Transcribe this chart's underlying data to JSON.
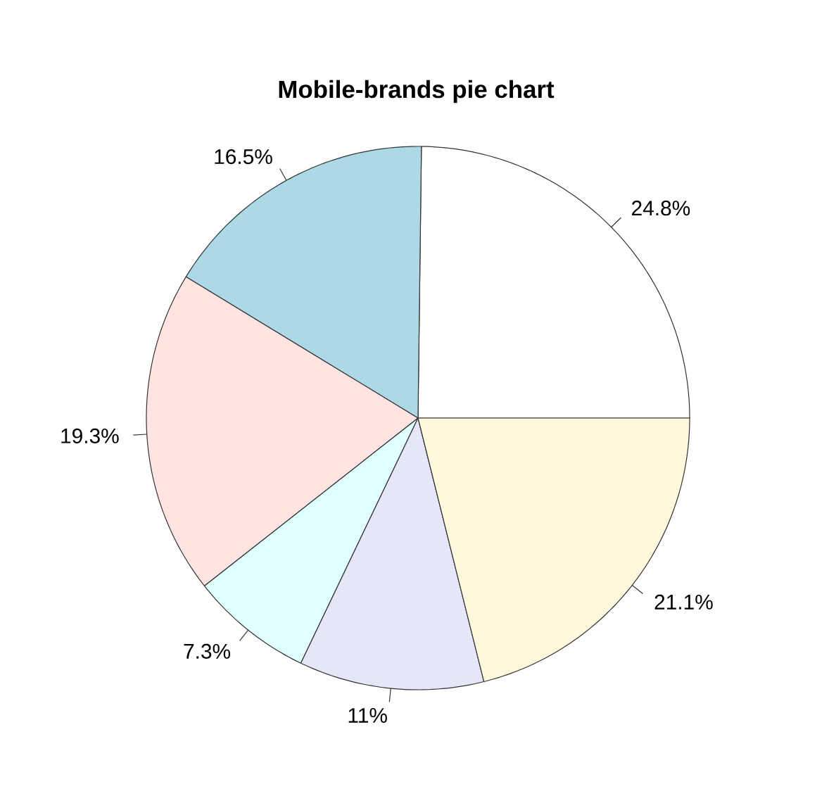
{
  "chart_data": {
    "type": "pie",
    "title": "Mobile-brands pie chart",
    "categories": [
      null,
      null,
      null,
      null,
      null,
      null
    ],
    "values": [
      24.8,
      16.5,
      19.3,
      7.3,
      11,
      21.1
    ],
    "colors": [
      "#ffffff",
      "#add8e6",
      "#ffe4e1",
      "#e0ffff",
      "#e6e6fa",
      "#fff8dc"
    ],
    "value_labels": [
      "24.8%",
      "16.5%",
      "19.3%",
      "7.3%",
      "11%",
      "21.1%"
    ]
  }
}
